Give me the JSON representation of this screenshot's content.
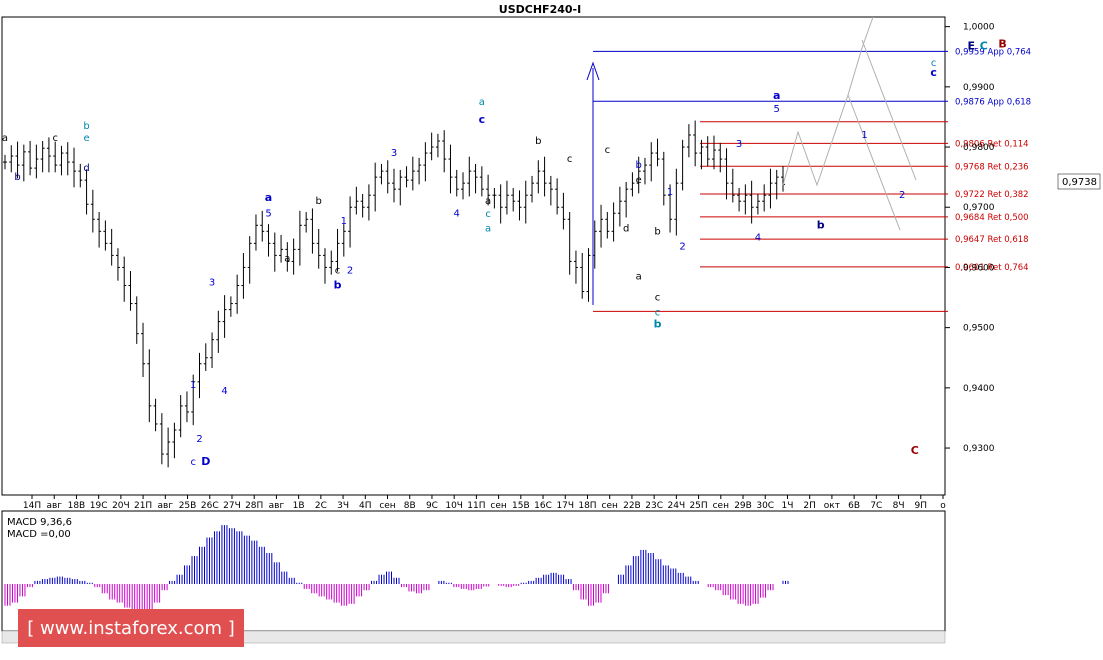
{
  "chart_data": {
    "type": "candlestick",
    "title": "USDCHF240-I",
    "ylim": [
      0.9222,
      1.0016
    ],
    "y_ticks": [
      {
        "label": "1,0000",
        "value": 1.0
      },
      {
        "label": "0,9900",
        "value": 0.99
      },
      {
        "label": "0,9800",
        "value": 0.98
      },
      {
        "label": "0,9700",
        "value": 0.97
      },
      {
        "label": "0,9600",
        "value": 0.96
      },
      {
        "label": "0,9500",
        "value": 0.95
      },
      {
        "label": "0,9400",
        "value": 0.94
      },
      {
        "label": "0,9300",
        "value": 0.93
      }
    ],
    "x_ticks": [
      "14П",
      "авг",
      "18В",
      "19С",
      "20Ч",
      "21П",
      "авг",
      "25В",
      "26С",
      "27Ч",
      "28П",
      "авг",
      "1В",
      "2С",
      "3Ч",
      "4П",
      "сен",
      "8В",
      "9С",
      "10Ч",
      "11П",
      "сен",
      "15В",
      "16С",
      "17Ч",
      "18П",
      "сен",
      "22В",
      "23С",
      "24Ч",
      "25П",
      "сен",
      "29В",
      "30С",
      "1Ч",
      "2П",
      "окт",
      "6В",
      "7С",
      "8Ч",
      "9П",
      "о"
    ],
    "current_price": {
      "label": "0,9738",
      "value": 0.9738
    },
    "price_path": [
      0.9775,
      0.9785,
      0.977,
      0.9792,
      0.9765,
      0.978,
      0.9798,
      0.9785,
      0.977,
      0.979,
      0.9775,
      0.976,
      0.9745,
      0.9705,
      0.968,
      0.966,
      0.964,
      0.962,
      0.96,
      0.957,
      0.954,
      0.949,
      0.944,
      0.937,
      0.934,
      0.929,
      0.931,
      0.933,
      0.937,
      0.936,
      0.941,
      0.944,
      0.945,
      0.948,
      0.951,
      0.953,
      0.954,
      0.957,
      0.96,
      0.964,
      0.967,
      0.966,
      0.964,
      0.962,
      0.963,
      0.961,
      0.963,
      0.967,
      0.968,
      0.964,
      0.962,
      0.96,
      0.961,
      0.964,
      0.966,
      0.97,
      0.971,
      0.97,
      0.972,
      0.975,
      0.976,
      0.974,
      0.973,
      0.975,
      0.9745,
      0.976,
      0.977,
      0.979,
      0.98,
      0.981,
      0.978,
      0.975,
      0.973,
      0.974,
      0.976,
      0.975,
      0.973,
      0.972,
      0.972,
      0.97,
      0.972,
      0.971,
      0.97,
      0.972,
      0.974,
      0.976,
      0.974,
      0.973,
      0.97,
      0.968,
      0.961,
      0.96,
      0.956,
      0.962,
      0.966,
      0.968,
      0.966,
      0.969,
      0.971,
      0.973,
      0.974,
      0.976,
      0.977,
      0.979,
      0.978,
      0.972,
      0.968,
      0.974,
      0.98,
      0.982,
      0.979,
      0.98,
      0.978,
      0.9795,
      0.978,
      0.974,
      0.972,
      0.971,
      0.972,
      0.97,
      0.971,
      0.972,
      0.974,
      0.975,
      0.9738
    ],
    "fib_levels": [
      {
        "label": "0,9959 App 0,764",
        "value": 0.9959,
        "color": "#0000cc"
      },
      {
        "label": "0,9876 App 0,618",
        "value": 0.9876,
        "color": "#0000cc"
      },
      {
        "label": "0,9806 Ret 0,114",
        "value": 0.9806,
        "color": "#cc0000"
      },
      {
        "label": "0,9768 Ret 0,236",
        "value": 0.9768,
        "color": "#cc0000"
      },
      {
        "label": "0,9722 Ret 0,382",
        "value": 0.9722,
        "color": "#cc0000"
      },
      {
        "label": "0,9684 Ret 0,500",
        "value": 0.9684,
        "color": "#cc0000"
      },
      {
        "label": "0,9647 Ret 0,618",
        "value": 0.9647,
        "color": "#cc0000"
      },
      {
        "label": "0,9601 Ret 0,764",
        "value": 0.9601,
        "color": "#cc0000"
      }
    ],
    "unlabeled_levels": [
      0.9842,
      0.9527
    ],
    "wave_labels": [
      {
        "text": "a",
        "i": 0,
        "p": 0.981,
        "c": "#000"
      },
      {
        "text": "b",
        "i": 2,
        "p": 0.9745,
        "c": "#000080"
      },
      {
        "text": "c",
        "i": 8,
        "p": 0.981,
        "c": "#000"
      },
      {
        "text": "b",
        "i": 13,
        "p": 0.983,
        "c": "#0088aa"
      },
      {
        "text": "e",
        "i": 13,
        "p": 0.981,
        "c": "#0088aa"
      },
      {
        "text": "d",
        "i": 13,
        "p": 0.976,
        "c": "#000080"
      },
      {
        "text": "3",
        "i": 33,
        "p": 0.957,
        "c": "#0000cc"
      },
      {
        "text": "1",
        "i": 30,
        "p": 0.94,
        "c": "#0000cc"
      },
      {
        "text": "4",
        "i": 35,
        "p": 0.939,
        "c": "#0000cc"
      },
      {
        "text": "2",
        "i": 31,
        "p": 0.931,
        "c": "#0000cc"
      },
      {
        "text": "c",
        "i": 30,
        "p": 0.9272,
        "c": "#0000cc"
      },
      {
        "text": "D",
        "i": 32,
        "p": 0.9272,
        "c": "#0000cc",
        "b": true
      },
      {
        "text": "a",
        "i": 42,
        "p": 0.971,
        "c": "#0000cc",
        "b": true
      },
      {
        "text": "5",
        "i": 42,
        "p": 0.9685,
        "c": "#0000cc"
      },
      {
        "text": "a",
        "i": 45,
        "p": 0.961,
        "c": "#000"
      },
      {
        "text": "b",
        "i": 50,
        "p": 0.9705,
        "c": "#000"
      },
      {
        "text": "1",
        "i": 54,
        "p": 0.9672,
        "c": "#0000cc"
      },
      {
        "text": "c",
        "i": 53,
        "p": 0.959,
        "c": "#000"
      },
      {
        "text": "2",
        "i": 55,
        "p": 0.959,
        "c": "#0000cc"
      },
      {
        "text": "b",
        "i": 53,
        "p": 0.9565,
        "c": "#0000cc",
        "b": true
      },
      {
        "text": "3",
        "i": 62,
        "p": 0.9785,
        "c": "#0000cc"
      },
      {
        "text": "4",
        "i": 72,
        "p": 0.9685,
        "c": "#0000cc"
      },
      {
        "text": "a",
        "i": 77,
        "p": 0.9705,
        "c": "#000"
      },
      {
        "text": "c",
        "i": 77,
        "p": 0.9684,
        "c": "#0088aa"
      },
      {
        "text": "a",
        "i": 77,
        "p": 0.966,
        "c": "#0088aa"
      },
      {
        "text": "a",
        "i": 76,
        "p": 0.987,
        "c": "#0088aa"
      },
      {
        "text": "c",
        "i": 76,
        "p": 0.984,
        "c": "#0000cc",
        "b": true
      },
      {
        "text": "b",
        "i": 85,
        "p": 0.9805,
        "c": "#000"
      },
      {
        "text": "c",
        "i": 90,
        "p": 0.9775,
        "c": "#000"
      },
      {
        "text": "c",
        "i": 96,
        "p": 0.979,
        "c": "#000"
      },
      {
        "text": "e",
        "i": 101,
        "p": 0.974,
        "c": "#000"
      },
      {
        "text": "b",
        "i": 101,
        "p": 0.9765,
        "c": "#0000cc"
      },
      {
        "text": "b",
        "i": 104,
        "p": 0.9655,
        "c": "#000"
      },
      {
        "text": "d",
        "i": 99,
        "p": 0.966,
        "c": "#000"
      },
      {
        "text": "a",
        "i": 101,
        "p": 0.958,
        "c": "#000"
      },
      {
        "text": "1",
        "i": 106,
        "p": 0.972,
        "c": "#0000cc"
      },
      {
        "text": "2",
        "i": 108,
        "p": 0.963,
        "c": "#0000cc"
      },
      {
        "text": "c",
        "i": 104,
        "p": 0.9545,
        "c": "#000"
      },
      {
        "text": "c",
        "i": 104,
        "p": 0.952,
        "c": "#0088aa"
      },
      {
        "text": "b",
        "i": 104,
        "p": 0.95,
        "c": "#0088aa",
        "b": true
      },
      {
        "text": "3",
        "i": 117,
        "p": 0.98,
        "c": "#0000cc"
      },
      {
        "text": "4",
        "i": 120,
        "p": 0.9645,
        "c": "#0000cc"
      },
      {
        "text": "a",
        "i": 123,
        "p": 0.988,
        "c": "#0000cc",
        "b": true
      },
      {
        "text": "5",
        "i": 123,
        "p": 0.9858,
        "c": "#0000cc"
      },
      {
        "text": "b",
        "i": 130,
        "p": 0.9665,
        "c": "#000080",
        "b": true
      },
      {
        "text": "1",
        "i": 137,
        "p": 0.9815,
        "c": "#0000cc"
      },
      {
        "text": "2",
        "i": 143,
        "p": 0.9715,
        "c": "#0000cc"
      },
      {
        "text": "c",
        "i": 148,
        "p": 0.9935,
        "c": "#0088aa"
      },
      {
        "text": "c",
        "i": 148,
        "p": 0.9918,
        "c": "#0000cc",
        "b": true
      },
      {
        "text": "E",
        "i": 154,
        "p": 0.9962,
        "c": "#000080",
        "b": true
      },
      {
        "text": "C",
        "i": 156,
        "p": 0.9962,
        "c": "#0088aa",
        "b": true
      },
      {
        "text": "B",
        "i": 159,
        "p": 0.9965,
        "c": "#990000",
        "b": true
      },
      {
        "text": "C",
        "i": 145,
        "p": 0.929,
        "c": "#990000",
        "b": true
      }
    ],
    "macd": {
      "label": "MACD 9,36,6",
      "value_label": "MACD =0,00",
      "ylim": [
        -1,
        1
      ],
      "values": [
        -0.35,
        -0.3,
        -0.2,
        -0.05,
        0.05,
        0.08,
        0.1,
        0.12,
        0.1,
        0.08,
        0.05,
        0.02,
        -0.05,
        -0.15,
        -0.25,
        -0.3,
        -0.38,
        -0.45,
        -0.5,
        -0.45,
        -0.3,
        -0.1,
        0.05,
        0.15,
        0.3,
        0.45,
        0.6,
        0.75,
        0.85,
        0.95,
        0.9,
        0.85,
        0.78,
        0.7,
        0.6,
        0.5,
        0.35,
        0.2,
        0.1,
        0.02,
        -0.08,
        -0.15,
        -0.2,
        -0.25,
        -0.3,
        -0.35,
        -0.32,
        -0.2,
        -0.1,
        0.05,
        0.15,
        0.2,
        0.1,
        -0.05,
        -0.12,
        -0.15,
        -0.1,
        0.0,
        0.05,
        0.02,
        -0.05,
        -0.08,
        -0.1,
        -0.08,
        -0.04,
        0.0,
        -0.03,
        -0.05,
        -0.03,
        0.02,
        0.05,
        0.1,
        0.15,
        0.18,
        0.15,
        0.08,
        -0.1,
        -0.25,
        -0.35,
        -0.3,
        -0.15,
        0.0,
        0.15,
        0.3,
        0.45,
        0.55,
        0.5,
        0.4,
        0.3,
        0.25,
        0.18,
        0.12,
        0.05,
        0.0,
        -0.05,
        -0.1,
        -0.18,
        -0.25,
        -0.32,
        -0.35,
        -0.32,
        -0.22,
        -0.1,
        0.0,
        0.05
      ]
    }
  },
  "watermark": "[ www.instaforex.com ]",
  "colors": {
    "bull_bar": "#0000cc",
    "bear_bar": "#cc00cc",
    "grid_axis": "#000000",
    "watermark_bg": "#e05050"
  }
}
